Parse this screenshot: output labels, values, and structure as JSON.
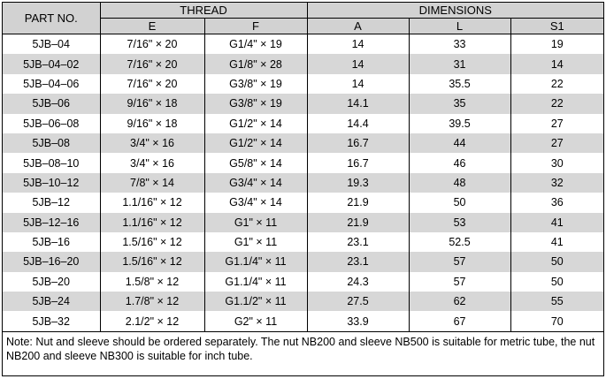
{
  "headers": {
    "part_no": "PART NO.",
    "thread": "THREAD",
    "dimensions": "DIMENSIONS",
    "e": "E",
    "f": "F",
    "a": "A",
    "l": "L",
    "s1": "S1"
  },
  "rows": [
    [
      "5JB–04",
      "7/16\" × 20",
      "G1/4\" × 19",
      "14",
      "33",
      "19"
    ],
    [
      "5JB–04–02",
      "7/16\" × 20",
      "G1/8\" × 28",
      "14",
      "31",
      "14"
    ],
    [
      "5JB–04–06",
      "7/16\" × 20",
      "G3/8\" × 19",
      "14",
      "35.5",
      "22"
    ],
    [
      "5JB–06",
      "9/16\" × 18",
      "G3/8\" × 19",
      "14.1",
      "35",
      "22"
    ],
    [
      "5JB–06–08",
      "9/16\" × 18",
      "G1/2\" × 14",
      "14.4",
      "39.5",
      "27"
    ],
    [
      "5JB–08",
      "3/4\" × 16",
      "G1/2\" × 14",
      "16.7",
      "44",
      "27"
    ],
    [
      "5JB–08–10",
      "3/4\" × 16",
      "G5/8\" × 14",
      "16.7",
      "46",
      "30"
    ],
    [
      "5JB–10–12",
      "7/8\" × 14",
      "G3/4\" × 14",
      "19.3",
      "48",
      "32"
    ],
    [
      "5JB–12",
      "1.1/16\" × 12",
      "G3/4\" × 14",
      "21.9",
      "50",
      "36"
    ],
    [
      "5JB–12–16",
      "1.1/16\" × 12",
      "G1\" × 11",
      "21.9",
      "53",
      "41"
    ],
    [
      "5JB–16",
      "1.5/16\" × 12",
      "G1\" × 11",
      "23.1",
      "52.5",
      "41"
    ],
    [
      "5JB–16–20",
      "1.5/16\" × 12",
      "G1.1/4\" × 11",
      "23.1",
      "57",
      "50"
    ],
    [
      "5JB–20",
      "1.5/8\" × 12",
      "G1.1/4\" × 11",
      "24.3",
      "57",
      "50"
    ],
    [
      "5JB–24",
      "1.7/8\" × 12",
      "G1.1/2\" × 11",
      "27.5",
      "62",
      "55"
    ],
    [
      "5JB–32",
      "2.1/2\" × 12",
      "G2\" × 11",
      "33.9",
      "67",
      "70"
    ]
  ],
  "note": "Note: Nut and sleeve should be ordered separately. The nut NB200 and sleeve NB500 is suitable for metric tube, the nut NB200 and sleeve NB300 is suitable for inch tube."
}
